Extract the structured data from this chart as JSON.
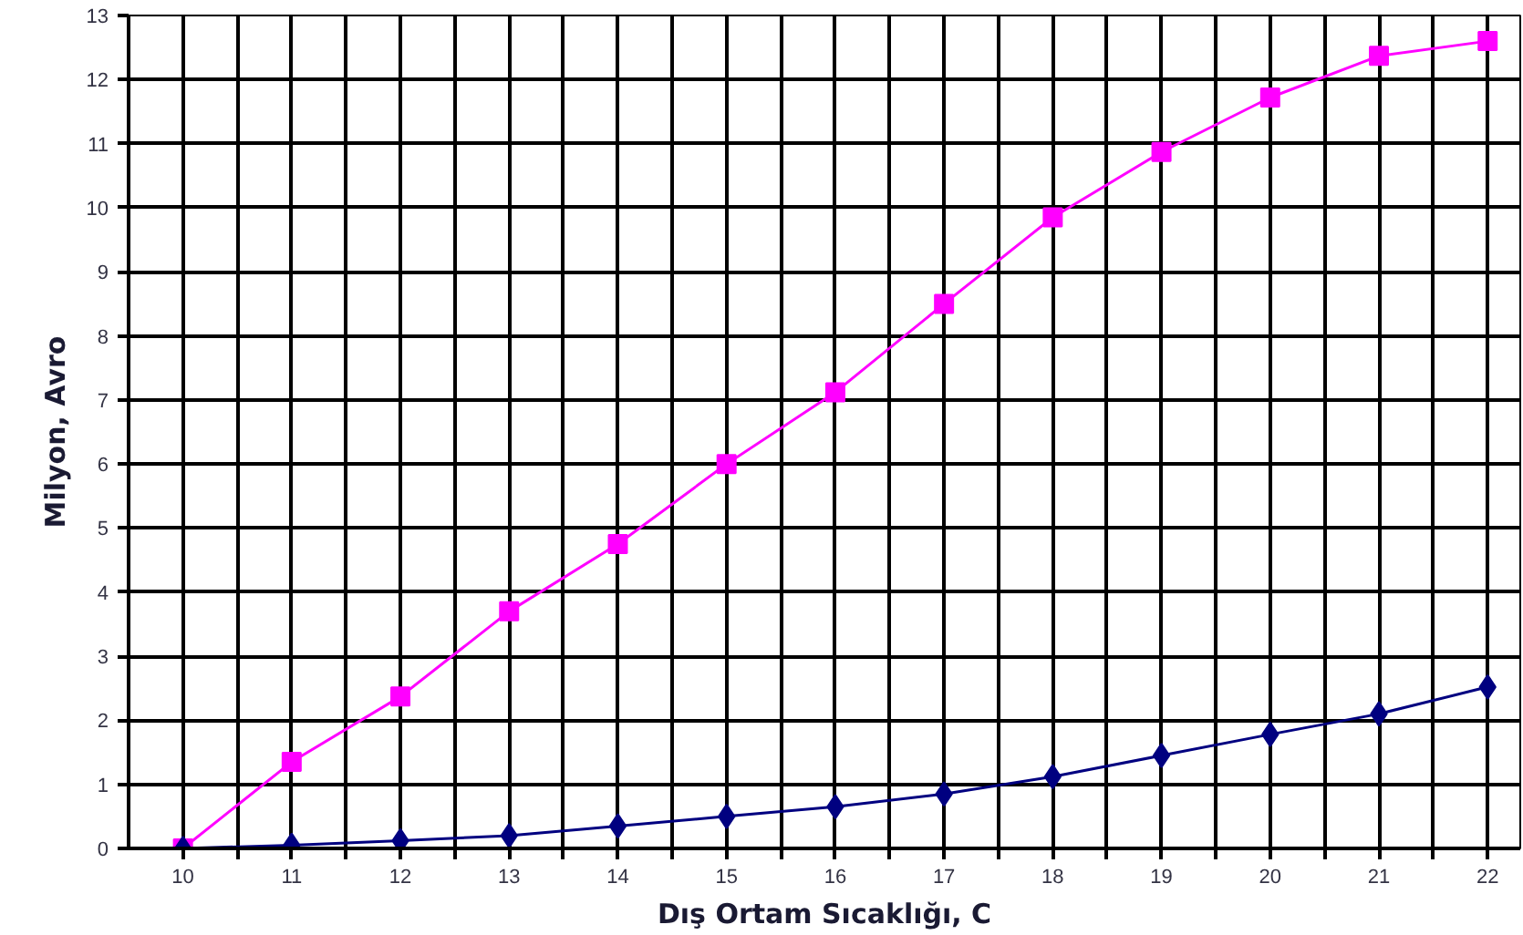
{
  "chart_data": {
    "type": "line",
    "xlabel": "Dış Ortam Sıcaklığı, C",
    "ylabel": "Milyon, Avro",
    "x": [
      10,
      11,
      12,
      13,
      14,
      15,
      16,
      17,
      18,
      19,
      20,
      21,
      22
    ],
    "series": [
      {
        "color": "#ff00ff",
        "marker": "square",
        "values": [
          0,
          1.35,
          2.37,
          3.7,
          4.75,
          6.0,
          7.12,
          8.5,
          9.85,
          10.87,
          11.72,
          12.37,
          12.6
        ]
      },
      {
        "color": "#000080",
        "marker": "diamond",
        "values": [
          0,
          0.05,
          0.12,
          0.2,
          0.35,
          0.5,
          0.65,
          0.85,
          1.12,
          1.45,
          1.78,
          2.1,
          2.52
        ]
      }
    ],
    "xlim": [
      9.5,
      22.3
    ],
    "xticks": [
      10,
      {
        "value": 10.5,
        "label": null
      },
      11,
      {
        "value": 11.5,
        "label": null
      },
      12,
      {
        "value": 12.5,
        "label": null
      },
      13,
      {
        "value": 13.5,
        "label": null
      },
      14,
      {
        "value": 14.5,
        "label": null
      },
      15,
      {
        "value": 15.5,
        "label": null
      },
      16,
      {
        "value": 16.5,
        "label": null
      },
      17,
      {
        "value": 17.5,
        "label": null
      },
      18,
      {
        "value": 18.5,
        "label": null
      },
      19,
      {
        "value": 19.5,
        "label": null
      },
      20,
      {
        "value": 20.5,
        "label": null
      },
      21,
      {
        "value": 21.5,
        "label": null
      },
      22
    ],
    "ylim": [
      0,
      13
    ],
    "yticks": [
      0,
      1,
      2,
      3,
      4,
      5,
      6,
      7,
      8,
      9,
      10,
      11,
      12,
      13
    ],
    "grid": true,
    "line_style": "solid"
  }
}
